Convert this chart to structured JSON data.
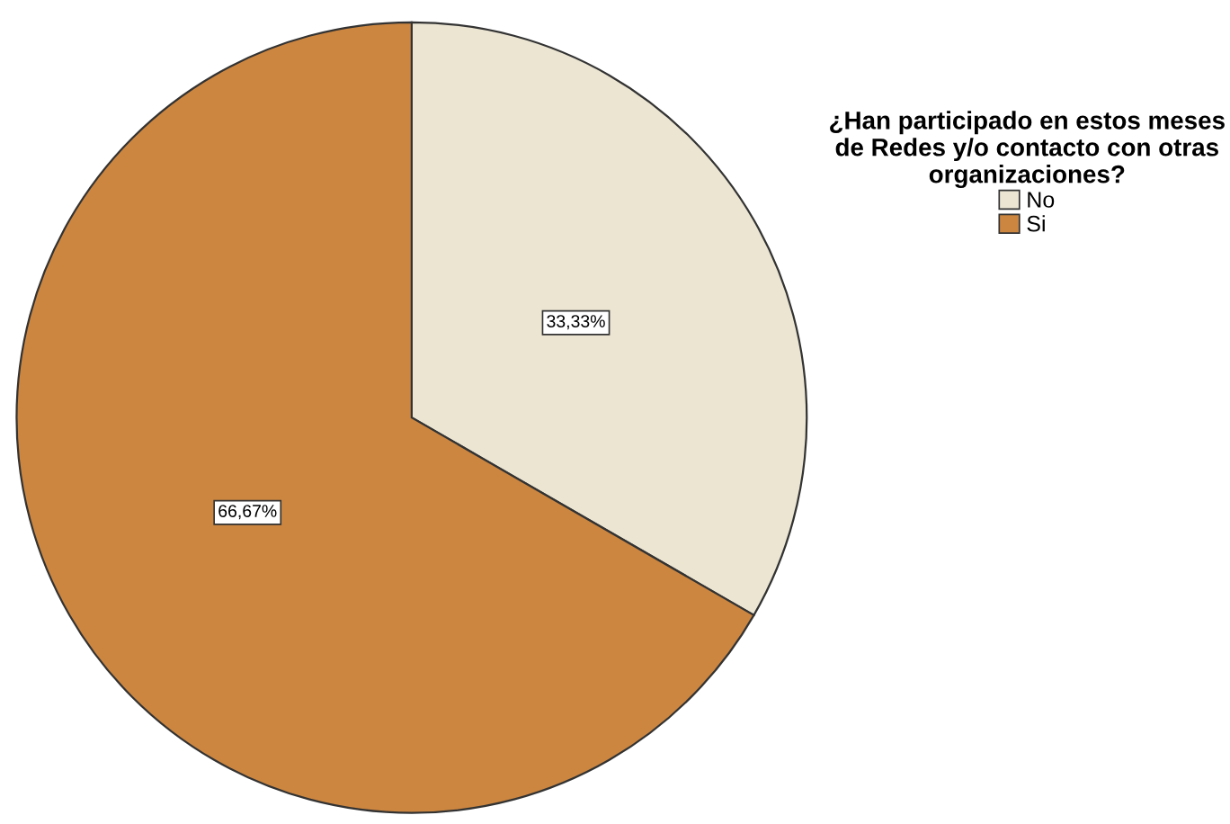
{
  "chart_data": {
    "type": "pie",
    "legend_title": "¿Han participado en estos meses\nde Redes y/o contacto con otras\norganizaciones?",
    "categories": [
      "No",
      "Si"
    ],
    "values": [
      33.33,
      66.67
    ],
    "value_labels": [
      "33,33%",
      "66,67%"
    ],
    "colors": [
      "#ebe5d2",
      "#cc8640"
    ],
    "legend": "top right"
  }
}
